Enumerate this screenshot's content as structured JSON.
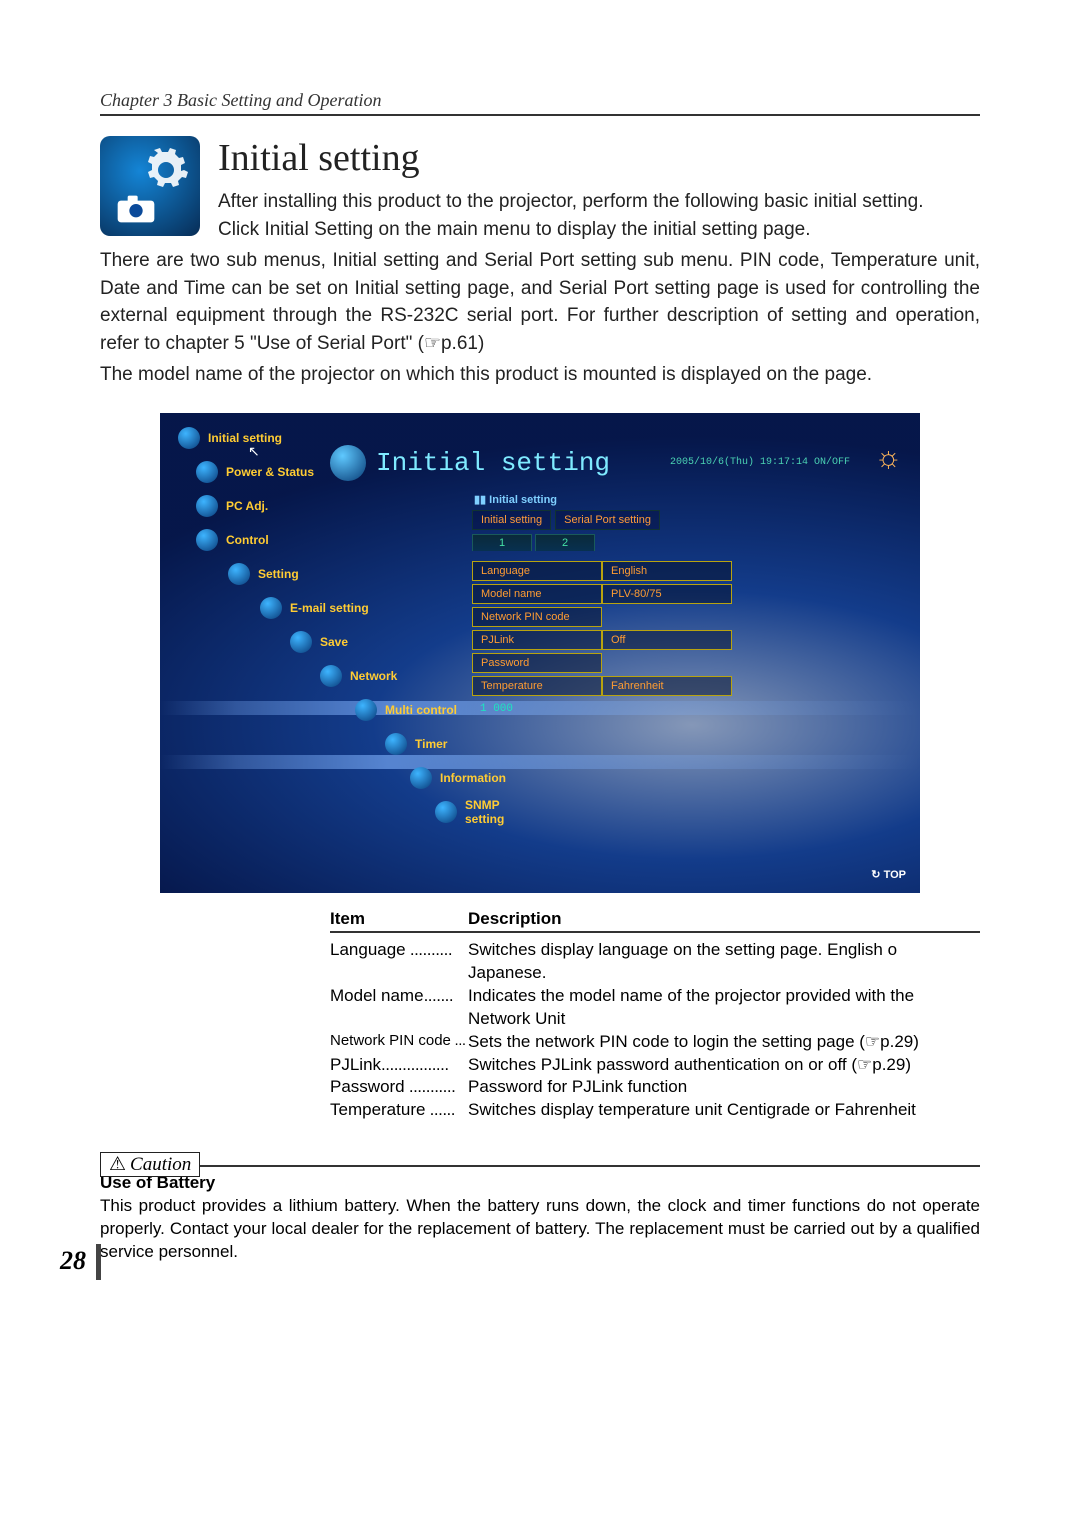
{
  "chapter_header": "Chapter 3 Basic Setting and Operation",
  "section_title": "Initial setting",
  "intro_para1": "After installing this product to the projector, perform the following basic initial setting.",
  "intro_para2a": "Click ",
  "intro_para2b": "Initial Setting",
  "intro_para2c": " on the main menu to display the initial setting page.",
  "intro_para3": "There are two sub menus, Initial setting and Serial Port setting sub menu. PIN code, Temperature unit, Date and Time can be set on Initial setting page, and Serial Port setting page is used for controlling the external equipment through the RS-232C serial port. For further description of setting and operation, refer to chapter 5 \"Use of Serial Port\" (☞p.61)",
  "intro_para4": "The model name of the projector on which this product is mounted is displayed on the page.",
  "screenshot": {
    "sidebar": [
      {
        "label": "Initial setting",
        "indent": 0
      },
      {
        "label": "Power & Status",
        "indent": 1
      },
      {
        "label": "PC Adj.",
        "indent": 1
      },
      {
        "label": "Control",
        "indent": 1
      },
      {
        "label": "Setting",
        "indent": 2
      },
      {
        "label": "E-mail setting",
        "indent": 3
      },
      {
        "label": "Save",
        "indent": 4
      },
      {
        "label": "Network",
        "indent": 5
      },
      {
        "label": "Multi control",
        "indent": 6
      },
      {
        "label": "Timer",
        "indent": 7
      },
      {
        "label": "Information",
        "indent": 8
      },
      {
        "label": "SNMP setting",
        "indent": 9
      }
    ],
    "main_title": "Initial setting",
    "datetime": "2005/10/6(Thu) 19:17:14  ON/OFF",
    "tab_group_label": "Initial setting",
    "tabs": [
      "Initial setting",
      "Serial Port setting"
    ],
    "subpages": [
      "1",
      "2"
    ],
    "rows": [
      {
        "k": "Language",
        "v": "English"
      },
      {
        "k": "Model name",
        "v": "PLV-80/75"
      },
      {
        "k": "Network PIN code",
        "v": ""
      },
      {
        "k": "PJLink",
        "v": "Off"
      },
      {
        "k": "Password",
        "v": ""
      },
      {
        "k": "Temperature",
        "v": "Fahrenheit"
      }
    ],
    "footer_val": "1 000",
    "top_label": "TOP"
  },
  "desc": {
    "h1": "Item",
    "h2": "Description",
    "rows": [
      {
        "k": "Language",
        "dots": " ..........",
        "v": "Switches display language on the setting page. English o Japanese."
      },
      {
        "k": "Model name",
        "dots": ".......",
        "v": "Indicates the model name of the projector provided with the Network Unit"
      },
      {
        "k": "Network PIN code",
        "dots": " ...",
        "v": "Sets the network PIN code to login the setting page (☞p.29)",
        "small": true
      },
      {
        "k": "PJLink",
        "dots": "................",
        "v": "Switches PJLink password authentication on or off (☞p.29)"
      },
      {
        "k": "Password",
        "dots": " ...........",
        "v": "Password for PJLink function"
      },
      {
        "k": "Temperature",
        "dots": " ......",
        "v": "Switches display temperature unit Centigrade or Fahrenheit"
      }
    ]
  },
  "caution_label": "Caution",
  "caution_title": "Use of Battery",
  "caution_text": "This product provides a lithium battery. When the battery runs down, the clock and timer functions do not operate properly. Contact your local dealer for the replacement of battery. The replacement must be carried out by a qualified service personnel.",
  "page_number": "28"
}
